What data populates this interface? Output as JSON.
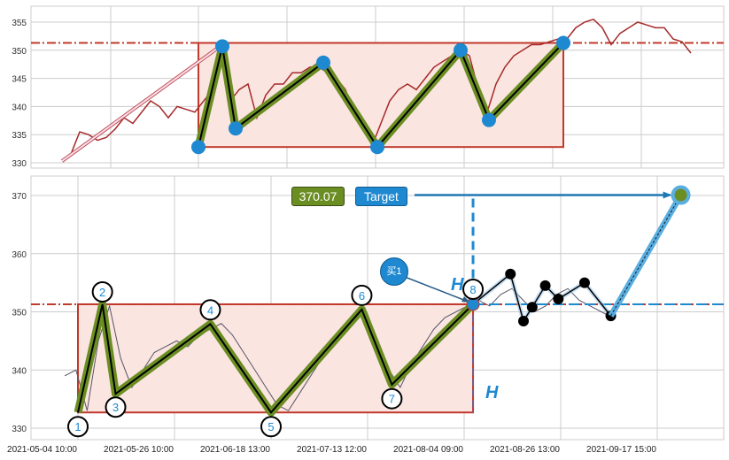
{
  "chart_data": [
    {
      "type": "line",
      "panel": "top",
      "ylim": [
        329,
        357.5
      ],
      "yticks": [
        330,
        335,
        340,
        345,
        350,
        355
      ],
      "grid": true,
      "colors": {
        "price": "#a52a2a",
        "box": "#c0392b",
        "box_fill": "#fbe5e1",
        "pattern": "#6b8e23",
        "marker": "#1e88d0",
        "neckline": "#c0392b"
      },
      "neckline": 351.3,
      "box": {
        "start_index": 15.4,
        "end_index": 56.6,
        "low": 332.8,
        "high": 351.3
      },
      "price": [
        330.5,
        331.5,
        335.5,
        335,
        334,
        334.5,
        336,
        338,
        337,
        339,
        341,
        340,
        338,
        340,
        339.5,
        339,
        341,
        343,
        349,
        341,
        343,
        344,
        338,
        342,
        344,
        344,
        346,
        346,
        347,
        347,
        346,
        345,
        343,
        339,
        337,
        333,
        337,
        341,
        343,
        344,
        343,
        345,
        347,
        348,
        349,
        350,
        349,
        343,
        339,
        344,
        347,
        349,
        350,
        351,
        351,
        351.5,
        352,
        352,
        354,
        355,
        355.5,
        354,
        351,
        353,
        354,
        355,
        354.5,
        354,
        354,
        352,
        351.5,
        349.5
      ],
      "pattern_points": [
        {
          "index": 15.4,
          "value": 332.8
        },
        {
          "index": 18.1,
          "value": 350.7
        },
        {
          "index": 19.6,
          "value": 336.1
        },
        {
          "index": 29.5,
          "value": 347.8
        },
        {
          "index": 35.6,
          "value": 332.8
        },
        {
          "index": 45,
          "value": 350
        },
        {
          "index": 48.2,
          "value": 337.6
        },
        {
          "index": 56.6,
          "value": 351.3
        }
      ],
      "trend_arrow": {
        "from": {
          "index": 0,
          "value": 330.3
        },
        "to": {
          "index": 17.5,
          "value": 350.3
        }
      }
    },
    {
      "type": "line",
      "panel": "bottom",
      "ylim": [
        328,
        373
      ],
      "yticks": [
        330,
        340,
        350,
        360,
        370
      ],
      "xticks": [
        "2021-05-04 10:00",
        "2021-05-26 10:00",
        "2021-06-18 13:00",
        "2021-07-13 12:00",
        "2021-08-04 09:00",
        "2021-08-26 13:00",
        "2021-09-17 15:00"
      ],
      "grid": true,
      "neckline": 351.3,
      "colors": {
        "price": "#555566",
        "box": "#c0392b",
        "box_fill": "#fbe5e1",
        "pattern": "#6b8e23",
        "projection": "#1e88d0",
        "future": "#000000"
      },
      "price": [
        339,
        340,
        333,
        345,
        351,
        342,
        337,
        340,
        343,
        344,
        345,
        344,
        346,
        347,
        348,
        346,
        343,
        340,
        337,
        334,
        333,
        336,
        339,
        342,
        345,
        347,
        349,
        350,
        345,
        340,
        337,
        341,
        344,
        347,
        349,
        350,
        351,
        352,
        351,
        353,
        354,
        352,
        350,
        351,
        353,
        354,
        352,
        351,
        350,
        349
      ],
      "price_start": "2021-05-01 10:00",
      "price_end": "2021-09-07 10:00",
      "box": {
        "start": "2021-05-04 10:00",
        "end": "2021-08-06 10:00",
        "low": 332.7,
        "high": 351.3
      },
      "pattern_points": [
        {
          "label": "1",
          "date": "2021-05-04 10:00",
          "value": 332.7
        },
        {
          "label": "2",
          "date": "2021-05-10 00:00",
          "value": 351.3
        },
        {
          "label": "3",
          "date": "2021-05-13 00:00",
          "value": 335.9
        },
        {
          "label": "4",
          "date": "2021-06-04 00:00",
          "value": 347.9
        },
        {
          "label": "5",
          "date": "2021-06-18 13:00",
          "value": 332.7
        },
        {
          "label": "6",
          "date": "2021-07-12 00:00",
          "value": 350.4
        },
        {
          "label": "7",
          "date": "2021-07-19 00:00",
          "value": 337.5
        },
        {
          "label": "8",
          "date": "2021-08-06 10:00",
          "value": 351.3
        }
      ],
      "future_points": [
        {
          "date": "2021-08-06 10:00",
          "value": 351.3
        },
        {
          "date": "2021-08-15 00:00",
          "value": 356.5
        },
        {
          "date": "2021-08-18 00:00",
          "value": 348.4
        },
        {
          "date": "2021-08-20 00:00",
          "value": 350.8
        },
        {
          "date": "2021-08-23 00:00",
          "value": 354.5
        },
        {
          "date": "2021-08-26 00:00",
          "value": 352.2
        },
        {
          "date": "2021-09-01 00:00",
          "value": 355
        },
        {
          "date": "2021-09-07 00:00",
          "value": 349.3
        }
      ],
      "target": {
        "date": "2021-09-23 00:00",
        "value": 370.07
      },
      "annotations": {
        "target_value": "370.07",
        "target_label": "Target",
        "buy_label": "买1",
        "height_label": "H"
      }
    }
  ]
}
